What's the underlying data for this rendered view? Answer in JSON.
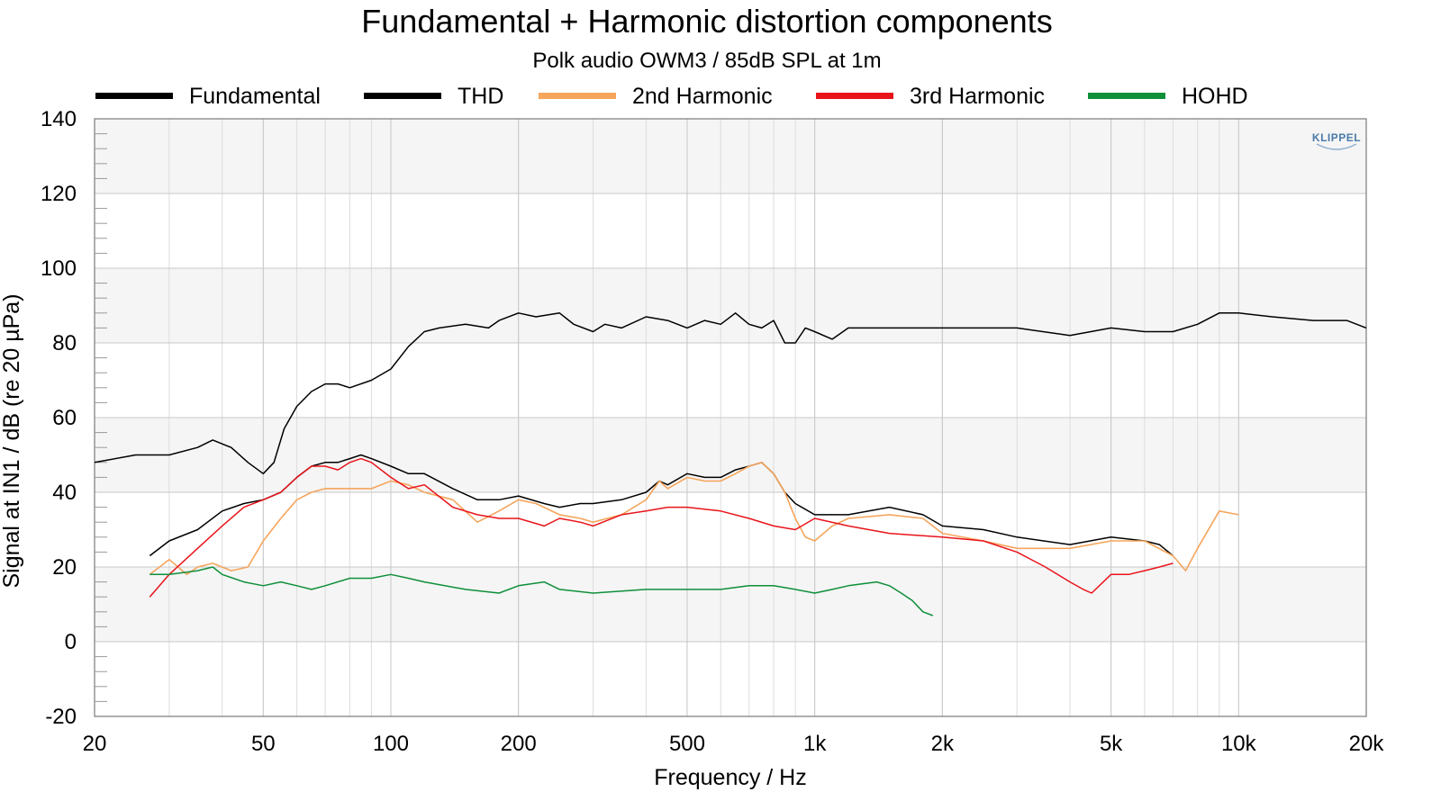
{
  "chart_data": {
    "type": "line",
    "title": "Fundamental + Harmonic distortion components",
    "subtitle": "Polk audio OWM3 / 85dB SPL at 1m",
    "xlabel": "Frequency / Hz",
    "ylabel": "Signal at IN1 / dB (re 20 µPa)",
    "x_scale": "log",
    "xlim": [
      20,
      20000
    ],
    "ylim": [
      -20,
      140
    ],
    "x_ticks": [
      20,
      50,
      100,
      200,
      500,
      1000,
      2000,
      5000,
      10000,
      20000
    ],
    "x_tick_labels": [
      "20",
      "50",
      "100",
      "200",
      "500",
      "1k",
      "2k",
      "5k",
      "10k",
      "20k"
    ],
    "y_ticks": [
      -20,
      0,
      20,
      40,
      60,
      80,
      100,
      120,
      140
    ],
    "y_tick_labels": [
      "-20",
      "0",
      "20",
      "40",
      "60",
      "80",
      "100",
      "120",
      "140"
    ],
    "grid": true,
    "banded_background": true,
    "legend_position": "top",
    "logo_text": "KLIPPEL",
    "series": [
      {
        "name": "Fundamental",
        "color": "#000000",
        "x": [
          20,
          25,
          30,
          35,
          38,
          42,
          46,
          50,
          53,
          56,
          60,
          65,
          70,
          75,
          80,
          90,
          100,
          110,
          120,
          130,
          150,
          170,
          180,
          200,
          220,
          250,
          270,
          300,
          320,
          350,
          400,
          450,
          500,
          550,
          600,
          650,
          700,
          750,
          800,
          850,
          900,
          950,
          1000,
          1100,
          1200,
          1500,
          2000,
          3000,
          4000,
          5000,
          6000,
          7000,
          8000,
          9000,
          10000,
          12000,
          15000,
          18000,
          20000
        ],
        "y": [
          48,
          50,
          50,
          52,
          54,
          52,
          48,
          45,
          48,
          57,
          63,
          67,
          69,
          69,
          68,
          70,
          73,
          79,
          83,
          84,
          85,
          84,
          86,
          88,
          87,
          88,
          85,
          83,
          85,
          84,
          87,
          86,
          84,
          86,
          85,
          88,
          85,
          84,
          86,
          80,
          80,
          84,
          83,
          81,
          84,
          84,
          84,
          84,
          82,
          84,
          83,
          83,
          85,
          88,
          88,
          87,
          86,
          86,
          84
        ]
      },
      {
        "name": "THD",
        "color": "#000000",
        "x": [
          27,
          30,
          35,
          40,
          45,
          50,
          55,
          60,
          65,
          70,
          75,
          80,
          85,
          90,
          100,
          110,
          120,
          140,
          160,
          180,
          200,
          230,
          250,
          280,
          300,
          350,
          400,
          430,
          450,
          500,
          550,
          600,
          650,
          700,
          750,
          800,
          850,
          900,
          1000,
          1100,
          1200,
          1500,
          1800,
          2000,
          2500,
          3000,
          4000,
          5000,
          6000,
          6500,
          7000
        ],
        "y": [
          23,
          27,
          30,
          35,
          37,
          38,
          40,
          44,
          47,
          48,
          48,
          49,
          50,
          49,
          47,
          45,
          45,
          41,
          38,
          38,
          39,
          37,
          36,
          37,
          37,
          38,
          40,
          43,
          42,
          45,
          44,
          44,
          46,
          47,
          48,
          45,
          40,
          37,
          34,
          34,
          34,
          36,
          34,
          31,
          30,
          28,
          26,
          28,
          27,
          26,
          23
        ]
      },
      {
        "name": "2nd Harmonic",
        "color": "#f5a55c",
        "x": [
          27,
          30,
          33,
          35,
          38,
          42,
          46,
          50,
          55,
          60,
          65,
          70,
          80,
          90,
          100,
          110,
          120,
          140,
          160,
          180,
          200,
          220,
          250,
          280,
          300,
          350,
          400,
          430,
          450,
          500,
          550,
          600,
          650,
          700,
          750,
          800,
          850,
          900,
          950,
          1000,
          1100,
          1200,
          1500,
          1800,
          2000,
          2500,
          3000,
          4000,
          5000,
          6000,
          7000,
          7500,
          8000,
          9000,
          10000
        ],
        "y": [
          18,
          22,
          18,
          20,
          21,
          19,
          20,
          27,
          33,
          38,
          40,
          41,
          41,
          41,
          43,
          42,
          40,
          38,
          32,
          35,
          38,
          37,
          34,
          33,
          32,
          34,
          38,
          43,
          41,
          44,
          43,
          43,
          45,
          47,
          48,
          45,
          40,
          33,
          28,
          27,
          31,
          33,
          34,
          33,
          29,
          27,
          25,
          25,
          27,
          27,
          23,
          19,
          25,
          35,
          34
        ]
      },
      {
        "name": "3rd Harmonic",
        "color": "#e8141a",
        "x": [
          27,
          30,
          35,
          40,
          45,
          50,
          55,
          60,
          65,
          70,
          75,
          80,
          85,
          90,
          100,
          110,
          120,
          140,
          160,
          180,
          200,
          230,
          250,
          280,
          300,
          350,
          400,
          450,
          500,
          600,
          700,
          800,
          900,
          1000,
          1200,
          1500,
          2000,
          2500,
          3000,
          3500,
          4000,
          4300,
          4500,
          5000,
          5500,
          6000,
          6500,
          7000
        ],
        "y": [
          12,
          18,
          25,
          31,
          36,
          38,
          40,
          44,
          47,
          47,
          46,
          48,
          49,
          48,
          44,
          41,
          42,
          36,
          34,
          33,
          33,
          31,
          33,
          32,
          31,
          34,
          35,
          36,
          36,
          35,
          33,
          31,
          30,
          33,
          31,
          29,
          28,
          27,
          24,
          20,
          16,
          14,
          13,
          18,
          18,
          19,
          20,
          21
        ]
      },
      {
        "name": "HOHD",
        "color": "#0e8f3a",
        "x": [
          27,
          30,
          35,
          38,
          40,
          45,
          50,
          55,
          60,
          65,
          70,
          80,
          90,
          100,
          110,
          120,
          150,
          180,
          200,
          230,
          250,
          300,
          400,
          500,
          600,
          700,
          800,
          900,
          1000,
          1100,
          1200,
          1400,
          1500,
          1600,
          1700,
          1800,
          1900
        ],
        "y": [
          18,
          18,
          19,
          20,
          18,
          16,
          15,
          16,
          15,
          14,
          15,
          17,
          17,
          18,
          17,
          16,
          14,
          13,
          15,
          16,
          14,
          13,
          14,
          14,
          14,
          15,
          15,
          14,
          13,
          14,
          15,
          16,
          15,
          13,
          11,
          8,
          7
        ]
      }
    ]
  }
}
